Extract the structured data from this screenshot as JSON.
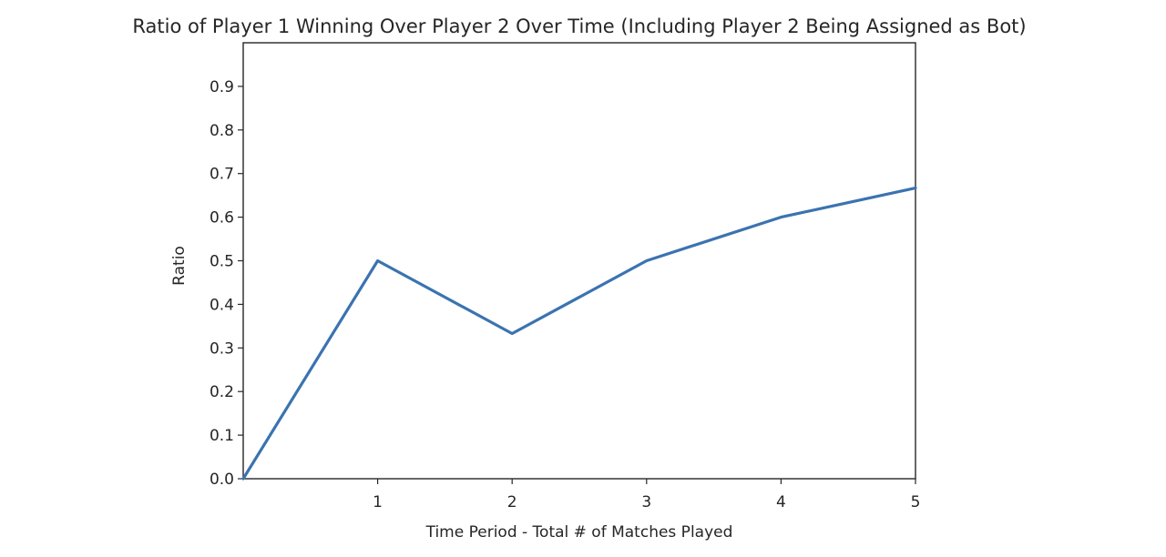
{
  "chart_data": {
    "type": "line",
    "title": "Ratio of Player 1 Winning Over Player 2 Over Time (Including Player 2 Being Assigned as Bot)",
    "xlabel": "Time Period - Total # of Matches Played",
    "ylabel": "Ratio",
    "x": [
      0,
      1,
      2,
      3,
      4,
      5
    ],
    "series": [
      {
        "values": [
          0.0,
          0.5,
          0.333,
          0.5,
          0.6,
          0.667
        ],
        "color": "#3b73b0"
      }
    ],
    "xlim": [
      0,
      5
    ],
    "ylim": [
      0,
      1
    ],
    "x_ticks": [
      1,
      2,
      3,
      4,
      5
    ],
    "x_tick_labels": [
      "1",
      "2",
      "3",
      "4",
      "5"
    ],
    "y_ticks": [
      0,
      0.1,
      0.2,
      0.3,
      0.4,
      0.5,
      0.6,
      0.7,
      0.8,
      0.9
    ],
    "y_tick_labels": [
      "0.0",
      "0.1",
      "0.2",
      "0.3",
      "0.4",
      "0.5",
      "0.6",
      "0.7",
      "0.8",
      "0.9"
    ],
    "grid": false,
    "legend": "none"
  }
}
